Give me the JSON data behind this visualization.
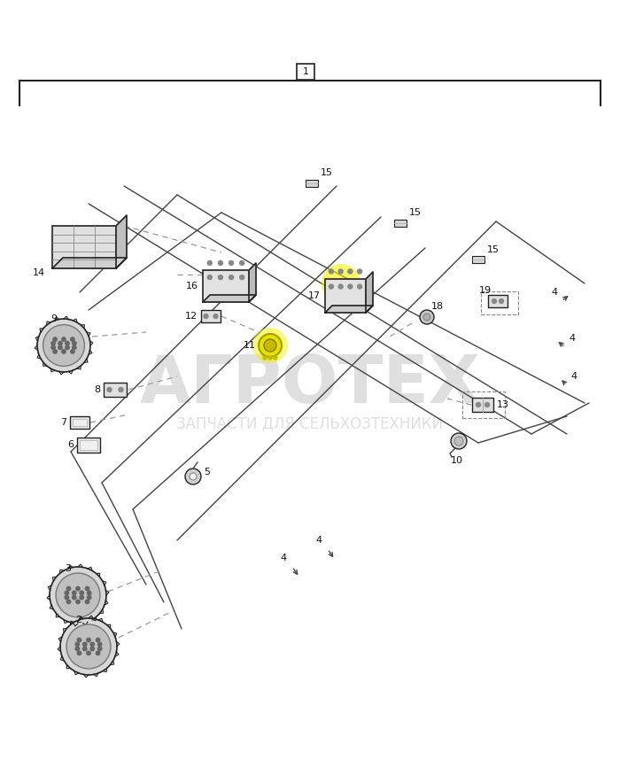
{
  "bg_color": "#ffffff",
  "watermark_text": "АГРОТЕХ",
  "watermark_subtext": "ЗАПЧАСТИ ДЛЯ СЕЛЬХОЗТЕХНИКИ",
  "watermark_color": "#c0c0c0",
  "border_color": "#222222",
  "line_color": "#444444",
  "dash_color": "#999999",
  "label_color": "#111111",
  "highlight_yellow": "#f5f000",
  "figure_width": 7.0,
  "figure_height": 8.66,
  "dpi": 100
}
